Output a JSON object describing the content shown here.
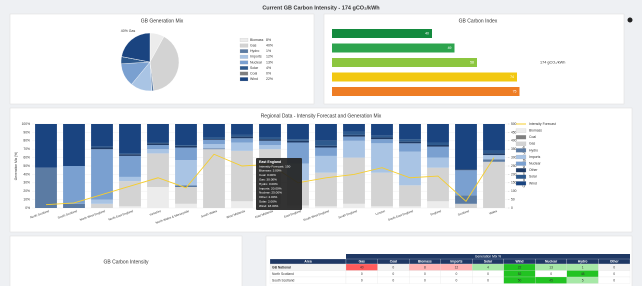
{
  "header": {
    "title": "Current GB Carbon Intensity - 174 gCO₂/kWh"
  },
  "chart_data": [
    {
      "type": "pie",
      "title": "GB Generation Mix",
      "annotation": "40% Gas",
      "categories": [
        "Biomass",
        "Gas",
        "Hydro",
        "Imports",
        "Nuclear",
        "Solar",
        "Coal",
        "Wind"
      ],
      "values": [
        8,
        40,
        1,
        12,
        13,
        4,
        0,
        22
      ],
      "value_labels": [
        "8%",
        "40%",
        "1%",
        "12%",
        "13%",
        "4%",
        "0%",
        "22%"
      ],
      "colors": [
        "#ececec",
        "#d3d3d3",
        "#5b7ba3",
        "#a9c4e4",
        "#7aa0d0",
        "#2e5a8e",
        "#7f7f7f",
        "#1a4480"
      ]
    },
    {
      "type": "hbar",
      "title": "GB Carbon Index",
      "annotation": "174 gCO₂/kWh",
      "values": [
        40,
        49,
        58,
        74,
        75
      ],
      "xlim": [
        0,
        100
      ],
      "colors": [
        "#138a3e",
        "#2da44e",
        "#8cc63f",
        "#f2c811",
        "#ee7d24"
      ]
    },
    {
      "type": "stacked-bar",
      "title": "Regional Data - Intensity Forecast and Generation Mix",
      "ylabel": "Generation Mix (%)",
      "y2label": "Carbon Intensity (gCO₂/kWh)",
      "categories": [
        "North Scotland",
        "South Scotland",
        "North West England",
        "North East England",
        "Yorkshire",
        "North Wales & Merseyside",
        "South Wales",
        "West Midlands",
        "East Midlands",
        "East England",
        "South West England",
        "South England",
        "London",
        "South East England",
        "England",
        "Scotland",
        "Wales"
      ],
      "ylim": [
        0,
        100
      ],
      "yticks": [
        {
          "value": 0,
          "label": "0%"
        },
        {
          "value": 10,
          "label": "10%"
        },
        {
          "value": 20,
          "label": "20%"
        },
        {
          "value": 30,
          "label": "30%"
        },
        {
          "value": 40,
          "label": "40%"
        },
        {
          "value": 50,
          "label": "50%"
        },
        {
          "value": 60,
          "label": "60%"
        },
        {
          "value": 70,
          "label": "70%"
        },
        {
          "value": 80,
          "label": "80%"
        },
        {
          "value": 90,
          "label": "90%"
        },
        {
          "value": 100,
          "label": "100%"
        }
      ],
      "y2lim": [
        0,
        500
      ],
      "y2ticks": [
        0,
        50,
        100,
        150,
        200,
        250,
        300,
        350,
        400,
        450,
        500
      ],
      "series": [
        {
          "name": "Intensity Forecast",
          "type": "line",
          "axis": "y2",
          "color": "#f5cd2e",
          "values": [
            20,
            30,
            80,
            130,
            180,
            120,
            320,
            250,
            260,
            150,
            180,
            200,
            240,
            180,
            190,
            40,
            300
          ]
        },
        {
          "name": "Biomass",
          "color": "#ececec",
          "values": [
            0,
            0,
            0,
            2,
            25,
            5,
            0,
            8,
            5,
            3,
            2,
            5,
            2,
            2,
            8,
            0,
            0
          ]
        },
        {
          "name": "Coal",
          "color": "#7f7f7f",
          "values": [
            0,
            0,
            0,
            0,
            0,
            0,
            0,
            0,
            0,
            0,
            0,
            0,
            0,
            0,
            0,
            0,
            0
          ]
        },
        {
          "name": "Gas",
          "color": "#d3d3d3",
          "values": [
            0,
            0,
            5,
            30,
            40,
            20,
            70,
            60,
            65,
            30,
            40,
            55,
            40,
            25,
            40,
            5,
            55
          ]
        },
        {
          "name": "Hydro",
          "color": "#5b7ba3",
          "values": [
            48,
            5,
            0,
            0,
            0,
            2,
            1,
            0,
            0,
            0,
            0,
            0,
            0,
            0,
            0,
            10,
            3
          ]
        },
        {
          "name": "Imports",
          "color": "#a9c4e4",
          "values": [
            0,
            0,
            5,
            5,
            5,
            30,
            5,
            10,
            5,
            20,
            20,
            20,
            35,
            40,
            12,
            0,
            5
          ]
        },
        {
          "name": "Nuclear",
          "color": "#7aa0d0",
          "values": [
            0,
            45,
            60,
            25,
            5,
            15,
            5,
            5,
            5,
            25,
            10,
            5,
            5,
            10,
            13,
            30,
            0
          ]
        },
        {
          "name": "Other",
          "color": "#1f3b66",
          "values": [
            0,
            0,
            2,
            2,
            2,
            2,
            1,
            2,
            2,
            2,
            2,
            2,
            2,
            2,
            2,
            1,
            2
          ]
        },
        {
          "name": "Solar",
          "color": "#2e5a8e",
          "values": [
            0,
            0,
            1,
            1,
            1,
            1,
            2,
            2,
            2,
            2,
            6,
            4,
            2,
            3,
            3,
            0,
            3
          ]
        },
        {
          "name": "Wind",
          "color": "#1a4480",
          "values": [
            52,
            50,
            27,
            35,
            22,
            25,
            16,
            13,
            16,
            18,
            20,
            9,
            14,
            18,
            22,
            54,
            32
          ]
        }
      ],
      "tooltip": {
        "title": "East England",
        "lines": [
          "Intensity Forecast: 150",
          "Biomass: 3.00%",
          "Coal: 0.00%",
          "Gas: 30.00%",
          "Hydro: 0.00%",
          "Imports: 20.00%",
          "Nuclear: 25.00%",
          "Other: 2.00%",
          "Solar: 2.00%",
          "Wind: 18.00%"
        ]
      }
    },
    {
      "type": "line",
      "title": "GB Carbon Intensity"
    }
  ],
  "table": {
    "title": "Generation Mix %",
    "columns": [
      "Area",
      "Gas",
      "Coal",
      "Biomass",
      "Imports",
      "Solar",
      "Wind",
      "Nuclear",
      "Hydro",
      "Other"
    ],
    "rows": [
      [
        "GB National",
        40,
        0,
        8,
        12,
        4,
        22,
        13,
        1,
        0
      ],
      [
        "North Scotland",
        0,
        0,
        0,
        0,
        0,
        52,
        0,
        48,
        0
      ],
      [
        "South Scotland",
        0,
        0,
        0,
        0,
        0,
        50,
        45,
        5,
        0
      ]
    ]
  }
}
